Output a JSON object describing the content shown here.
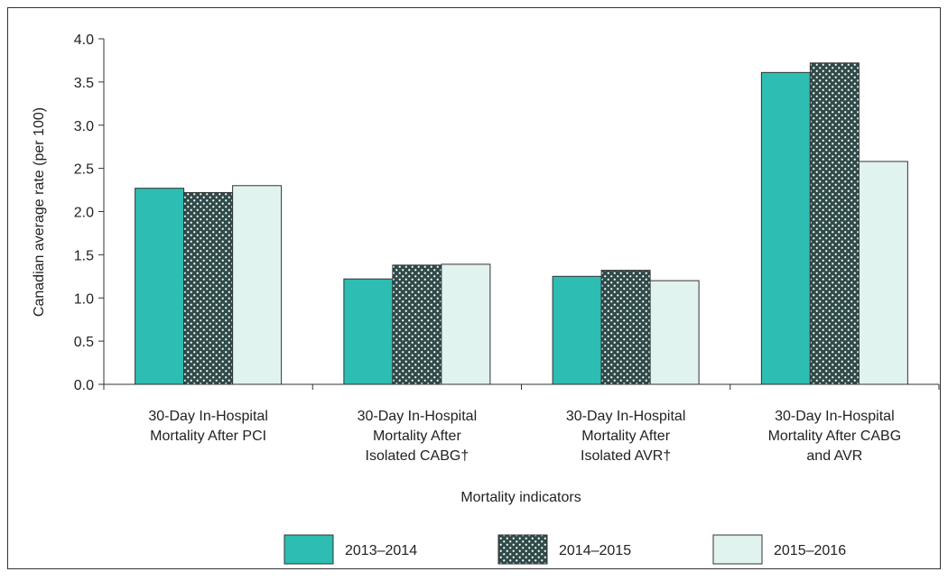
{
  "chart_data": {
    "type": "bar",
    "x_label": "Mortality indicators",
    "y_label": "Canadian average rate (per 100)",
    "categories": [
      "30-Day In-Hospital\nMortality After PCI",
      "30-Day In-Hospital\nMortality After\nIsolated CABG†",
      "30-Day In-Hospital\nMortality After\nIsolated AVR†",
      "30-Day In-Hospital\nMortality After CABG\nand AVR"
    ],
    "series": [
      {
        "name": "2013–2014",
        "color": "#2dbdb2",
        "values": [
          2.27,
          1.22,
          1.25,
          3.61
        ]
      },
      {
        "name": "2014–2015",
        "color": "#2f4b4a",
        "pattern": "dots",
        "values": [
          2.22,
          1.38,
          1.32,
          3.72
        ]
      },
      {
        "name": "2015–2016",
        "color": "#e1f3ef",
        "values": [
          2.3,
          1.39,
          1.2,
          2.58
        ]
      }
    ],
    "ylim": [
      0,
      4
    ],
    "yticks": [
      {
        "value": 0,
        "label": "0.0"
      },
      0.5,
      {
        "value": 1,
        "label": "1.0"
      },
      1.5,
      {
        "value": 2,
        "label": "2.0"
      },
      2.5,
      {
        "value": 3,
        "label": "3.0"
      },
      3.5,
      {
        "value": 4,
        "label": "4.0"
      }
    ],
    "legend": "bottom"
  }
}
